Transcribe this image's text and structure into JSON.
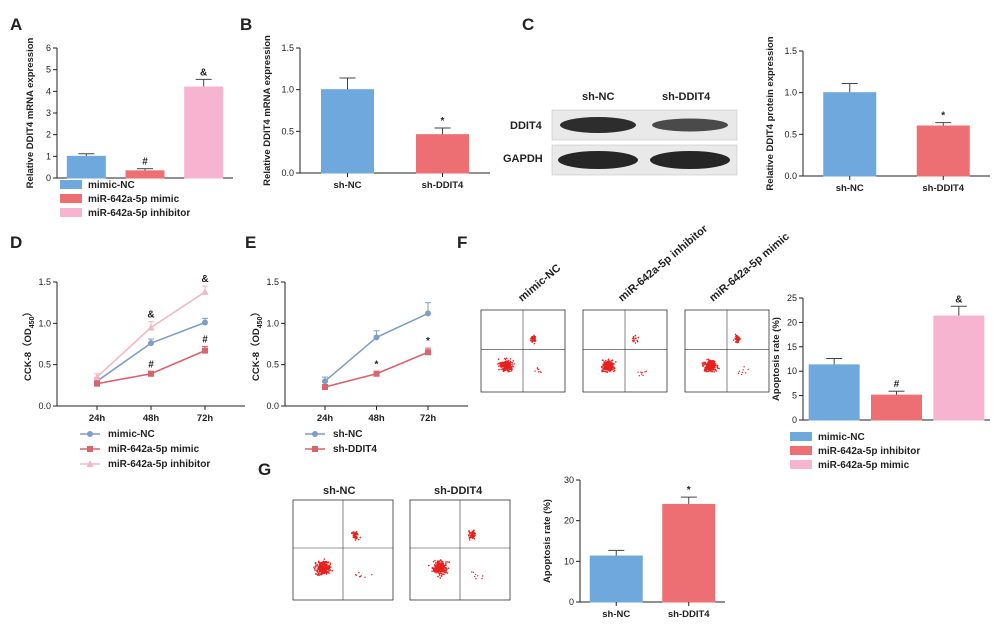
{
  "colors": {
    "blue": "#6fa8dc",
    "red": "#ee6f73",
    "pink": "#f7b4d0",
    "line_blue": "#7f9ec6",
    "line_red": "#d8646c",
    "line_pink": "#f2b8c2",
    "axis": "#222222",
    "flow_dots": "#e8211e"
  },
  "panels": {
    "A": "A",
    "B": "B",
    "C": "C",
    "D": "D",
    "E": "E",
    "F": "F",
    "G": "G"
  },
  "blot": {
    "groups": [
      "sh-NC",
      "sh-DDIT4"
    ],
    "bands": [
      "DDIT4",
      "GAPDH"
    ]
  },
  "flow_F": {
    "labels": [
      "mimic-NC",
      "miR-642a-5p inhibitor",
      "miR-642a-5p mimic"
    ],
    "icons": [
      "flow-plot-icon",
      "flow-plot-icon",
      "flow-plot-icon"
    ]
  },
  "flow_G": {
    "labels": [
      "sh-NC",
      "sh-DDIT4"
    ],
    "icons": [
      "flow-plot-icon",
      "flow-plot-icon"
    ]
  },
  "chart_data": [
    {
      "id": "A",
      "type": "bar",
      "categories": [
        "mimic-NC",
        "miR-642a-5p mimic",
        "miR-642a-5p inhibitor"
      ],
      "values": [
        1.0,
        0.33,
        4.2
      ],
      "errors": [
        0.12,
        0.1,
        0.35
      ],
      "marks": [
        "",
        "#",
        "&"
      ],
      "ylabel": "Relative DDIT4 mRNA expression",
      "ylim": [
        0,
        6
      ],
      "yticks": [
        0,
        1,
        2,
        3,
        4,
        5,
        6
      ],
      "show_x_labels": false,
      "legend": [
        "mimic-NC",
        "miR-642a-5p mimic",
        "miR-642a-5p inhibitor"
      ]
    },
    {
      "id": "B",
      "type": "bar",
      "categories": [
        "sh-NC",
        "sh-DDIT4"
      ],
      "values": [
        1.0,
        0.46
      ],
      "errors": [
        0.14,
        0.08
      ],
      "marks": [
        "",
        "*"
      ],
      "ylabel": "Relative DDIT4 mRNA expression",
      "ylim": [
        0,
        1.5
      ],
      "yticks": [
        0.0,
        0.5,
        1.0,
        1.5
      ]
    },
    {
      "id": "C",
      "type": "bar",
      "categories": [
        "sh-NC",
        "sh-DDIT4"
      ],
      "values": [
        1.0,
        0.6
      ],
      "errors": [
        0.11,
        0.04
      ],
      "marks": [
        "",
        "*"
      ],
      "ylabel": "Relative DDIT4 protein expression",
      "ylim": [
        0,
        1.5
      ],
      "yticks": [
        0.0,
        0.5,
        1.0,
        1.5
      ]
    },
    {
      "id": "D",
      "type": "line",
      "x": [
        "24h",
        "48h",
        "72h"
      ],
      "ylabel": "CCK-8（OD450）",
      "ylim": [
        0,
        1.5
      ],
      "yticks": [
        0.0,
        0.5,
        1.0,
        1.5
      ],
      "series": [
        {
          "name": "mimic-NC",
          "values": [
            0.3,
            0.76,
            1.01
          ],
          "errors": [
            0.04,
            0.05,
            0.05
          ],
          "marks": [
            "",
            "",
            ""
          ]
        },
        {
          "name": "miR-642a-5p mimic",
          "values": [
            0.27,
            0.39,
            0.67
          ],
          "errors": [
            0.03,
            0.03,
            0.05
          ],
          "marks": [
            "",
            "#",
            "#"
          ]
        },
        {
          "name": "miR-642a-5p inhibitor",
          "values": [
            0.35,
            0.95,
            1.38
          ],
          "errors": [
            0.04,
            0.07,
            0.07
          ],
          "marks": [
            "",
            "&",
            "&"
          ]
        }
      ]
    },
    {
      "id": "E",
      "type": "line",
      "x": [
        "24h",
        "48h",
        "72h"
      ],
      "ylabel": "CCK-8（OD450）",
      "ylim": [
        0,
        1.5
      ],
      "yticks": [
        0.0,
        0.5,
        1.0,
        1.5
      ],
      "series": [
        {
          "name": "sh-NC",
          "values": [
            0.3,
            0.83,
            1.12
          ],
          "errors": [
            0.05,
            0.08,
            0.13
          ],
          "marks": [
            "",
            "",
            ""
          ]
        },
        {
          "name": "sh-DDIT4",
          "values": [
            0.23,
            0.39,
            0.65
          ],
          "errors": [
            0.03,
            0.03,
            0.05
          ],
          "marks": [
            "",
            "*",
            "*"
          ]
        }
      ]
    },
    {
      "id": "F",
      "type": "bar",
      "categories": [
        "mimic-NC",
        "miR-642a-5p  inhibitor",
        "miR-642a-5p mimic"
      ],
      "values": [
        11.3,
        5.1,
        21.3
      ],
      "errors": [
        1.3,
        0.8,
        2.0
      ],
      "marks": [
        "",
        "#",
        "&"
      ],
      "ylabel": "Apoptosis rate (%)",
      "ylim": [
        0,
        25
      ],
      "yticks": [
        0,
        5,
        10,
        15,
        20,
        25
      ],
      "show_x_labels": false,
      "legend": [
        "mimic-NC",
        "miR-642a-5p  inhibitor",
        "miR-642a-5p mimic"
      ]
    },
    {
      "id": "G",
      "type": "bar",
      "categories": [
        "sh-NC",
        "sh-DDIT4"
      ],
      "values": [
        11.3,
        24.0
      ],
      "errors": [
        1.4,
        1.8
      ],
      "marks": [
        "",
        "*"
      ],
      "ylabel": "Apoptosis rate (%)",
      "ylim": [
        0,
        30
      ],
      "yticks": [
        0,
        10,
        20,
        30
      ]
    }
  ]
}
